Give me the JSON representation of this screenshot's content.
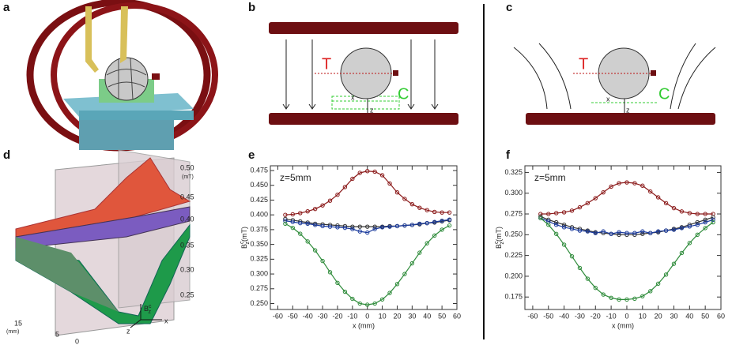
{
  "panel_labels": [
    "a",
    "b",
    "c",
    "d",
    "e",
    "f"
  ],
  "diagram_b": {
    "t_label": "T",
    "c_label": "C",
    "x_label": "x",
    "z_label": "z"
  },
  "diagram_c": {
    "t_label": "T",
    "c_label": "C",
    "x_label": "x",
    "z_label": "z"
  },
  "surface_d": {
    "field_ticks": [
      "0.50",
      "0.45",
      "0.40",
      "0.35",
      "0.30",
      "0.25"
    ],
    "field_unit": "(mT)",
    "depth_ticks": [
      "15",
      "5",
      "0"
    ],
    "depth_unit": "(mm)",
    "axis_x": "x",
    "axis_z": "z",
    "field_symbol": {
      "base": "B",
      "sup": "c",
      "sub": "z"
    }
  },
  "chart_data": [
    {
      "type": "line",
      "annotation": "z=5mm",
      "xlabel": "x (mm)",
      "ylabel": {
        "base": "B",
        "sup": "c",
        "sub": "z",
        "unit": "(mT)"
      },
      "x": [
        -55,
        -50,
        -45,
        -40,
        -35,
        -30,
        -25,
        -20,
        -15,
        -10,
        -5,
        0,
        5,
        10,
        15,
        20,
        25,
        30,
        35,
        40,
        45,
        50,
        55
      ],
      "xlim": [
        -65,
        60
      ],
      "xticks": [
        -60,
        -50,
        -40,
        -30,
        -20,
        -10,
        0,
        10,
        20,
        30,
        40,
        50,
        60
      ],
      "ylim": [
        0.24,
        0.483
      ],
      "yticks": [
        {
          "value": 0.25,
          "label": "0.250"
        },
        0.275,
        {
          "value": 0.3,
          "label": "0.300"
        },
        0.325,
        {
          "value": 0.35,
          "label": "0.350"
        },
        0.375,
        {
          "value": 0.4,
          "label": "0.400"
        },
        0.425,
        {
          "value": 0.45,
          "label": "0.450"
        },
        0.475
      ],
      "series": [
        {
          "color": "#8b1a1a",
          "values": [
            0.4,
            0.401,
            0.403,
            0.406,
            0.41,
            0.416,
            0.424,
            0.434,
            0.447,
            0.461,
            0.471,
            0.474,
            0.473,
            0.467,
            0.453,
            0.438,
            0.427,
            0.418,
            0.412,
            0.408,
            0.405,
            0.404,
            0.404
          ]
        },
        {
          "color": "#333333",
          "values": [
            0.393,
            0.391,
            0.389,
            0.387,
            0.385,
            0.384,
            0.383,
            0.382,
            0.381,
            0.38,
            0.38,
            0.38,
            0.38,
            0.38,
            0.381,
            0.381,
            0.382,
            0.383,
            0.384,
            0.386,
            0.387,
            0.389,
            0.391
          ]
        },
        {
          "color": "#1a3a9c",
          "values": [
            0.39,
            0.388,
            0.386,
            0.385,
            0.383,
            0.381,
            0.38,
            0.379,
            0.378,
            0.376,
            0.372,
            0.37,
            0.376,
            0.379,
            0.38,
            0.381,
            0.382,
            0.383,
            0.385,
            0.386,
            0.388,
            0.39,
            0.392
          ]
        },
        {
          "color": "#2e8b3a",
          "values": [
            0.385,
            0.378,
            0.368,
            0.355,
            0.34,
            0.322,
            0.303,
            0.285,
            0.27,
            0.258,
            0.25,
            0.248,
            0.25,
            0.257,
            0.268,
            0.283,
            0.3,
            0.318,
            0.336,
            0.352,
            0.365,
            0.375,
            0.382
          ]
        }
      ]
    },
    {
      "type": "line",
      "annotation": "z=5mm",
      "xlabel": "x (mm)",
      "ylabel": {
        "base": "B",
        "sup": "c",
        "sub": "z",
        "unit": "(mT)"
      },
      "x": [
        -55,
        -50,
        -45,
        -40,
        -35,
        -30,
        -25,
        -20,
        -15,
        -10,
        -5,
        0,
        5,
        10,
        15,
        20,
        25,
        30,
        35,
        40,
        45,
        50,
        55
      ],
      "xlim": [
        -65,
        60
      ],
      "xticks": [
        -60,
        -50,
        -40,
        -30,
        -20,
        -10,
        0,
        10,
        20,
        30,
        40,
        50,
        60
      ],
      "ylim": [
        0.16,
        0.333
      ],
      "yticks": [
        0.175,
        {
          "value": 0.2,
          "label": "0.200"
        },
        0.225,
        {
          "value": 0.25,
          "label": "0.250"
        },
        0.275,
        {
          "value": 0.3,
          "label": "0.300"
        },
        0.325
      ],
      "series": [
        {
          "color": "#8b1a1a",
          "values": [
            0.275,
            0.275,
            0.276,
            0.277,
            0.279,
            0.283,
            0.288,
            0.294,
            0.301,
            0.308,
            0.312,
            0.313,
            0.312,
            0.309,
            0.302,
            0.295,
            0.288,
            0.282,
            0.278,
            0.276,
            0.275,
            0.275,
            0.275
          ]
        },
        {
          "color": "#333333",
          "values": [
            0.272,
            0.268,
            0.265,
            0.262,
            0.259,
            0.257,
            0.255,
            0.253,
            0.252,
            0.251,
            0.25,
            0.25,
            0.25,
            0.251,
            0.252,
            0.253,
            0.255,
            0.257,
            0.259,
            0.262,
            0.265,
            0.268,
            0.271
          ]
        },
        {
          "color": "#1a3a9c",
          "values": [
            0.27,
            0.266,
            0.262,
            0.259,
            0.257,
            0.255,
            0.254,
            0.252,
            0.254,
            0.251,
            0.253,
            0.252,
            0.252,
            0.254,
            0.252,
            0.254,
            0.255,
            0.256,
            0.258,
            0.26,
            0.262,
            0.265,
            0.268
          ]
        },
        {
          "color": "#2e8b3a",
          "values": [
            0.27,
            0.262,
            0.251,
            0.238,
            0.224,
            0.21,
            0.197,
            0.186,
            0.178,
            0.174,
            0.172,
            0.172,
            0.173,
            0.176,
            0.182,
            0.191,
            0.202,
            0.215,
            0.228,
            0.24,
            0.25,
            0.258,
            0.265
          ]
        }
      ]
    }
  ]
}
